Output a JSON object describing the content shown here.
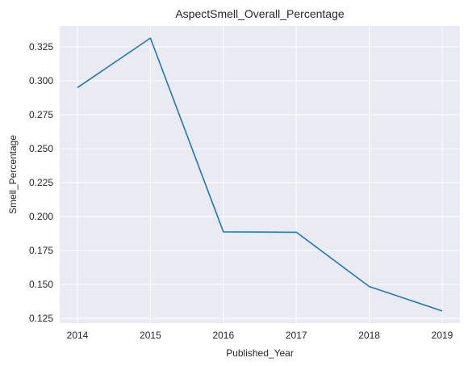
{
  "chart_data": {
    "type": "line",
    "title": "AspectSmell_Overall_Percentage",
    "xlabel": "Published_Year",
    "ylabel": "Smell_Percentage",
    "x": [
      "2014",
      "2015",
      "2016",
      "2017",
      "2018",
      "2019"
    ],
    "series": [
      {
        "values": [
          0.295,
          0.3315,
          0.1888,
          0.1885,
          0.1485,
          0.1305
        ]
      }
    ],
    "yticks": [
      "0.125",
      "0.150",
      "0.175",
      "0.200",
      "0.225",
      "0.250",
      "0.275",
      "0.300",
      "0.325"
    ],
    "ylim": [
      0.1215,
      0.3405
    ],
    "grid": true,
    "colors": {
      "background": "#eaeaf2",
      "grid": "#ffffff",
      "line": "#1f77b4"
    }
  }
}
